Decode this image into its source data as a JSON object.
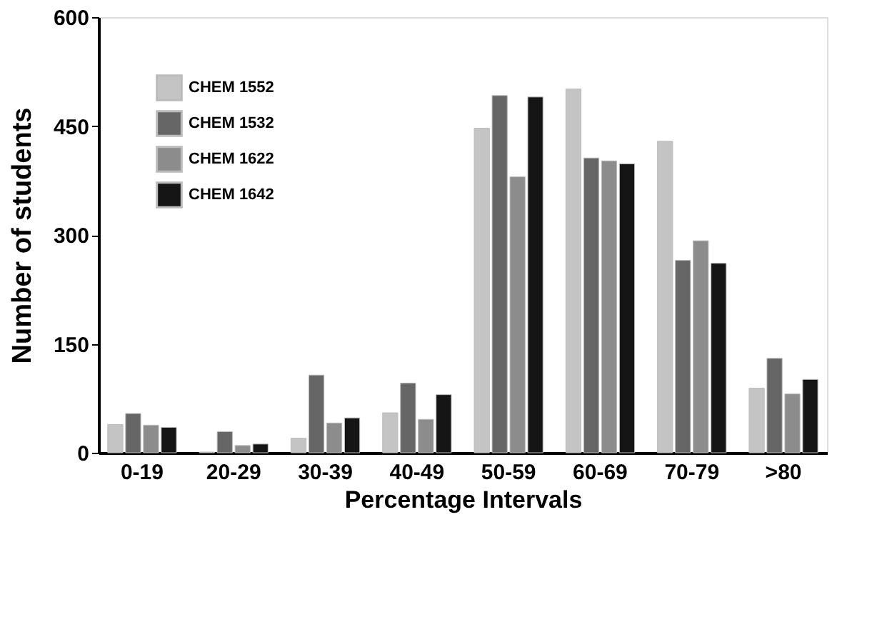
{
  "chart_data": {
    "type": "bar",
    "xlabel": "Percentage Intervals",
    "ylabel": "Number of students",
    "categories": [
      "0-19",
      "20-29",
      "30-39",
      "40-49",
      "50-59",
      "60-69",
      "70-79",
      ">80"
    ],
    "series": [
      {
        "name": "CHEM 1552",
        "color": "#c4c4c4",
        "values": [
          39,
          1,
          20,
          55,
          447,
          501,
          429,
          89
        ]
      },
      {
        "name": "CHEM 1532",
        "color": "#666666",
        "values": [
          54,
          29,
          107,
          96,
          492,
          406,
          265,
          130
        ]
      },
      {
        "name": "CHEM 1622",
        "color": "#8c8c8c",
        "values": [
          38,
          10,
          41,
          46,
          380,
          402,
          292,
          81
        ]
      },
      {
        "name": "CHEM 1642",
        "color": "#151515",
        "values": [
          35,
          12,
          48,
          80,
          490,
          398,
          261,
          101
        ]
      }
    ],
    "ylim": [
      0,
      600
    ],
    "yticks": [
      0,
      150,
      300,
      450,
      600
    ],
    "grid": false,
    "legend": "top left"
  }
}
